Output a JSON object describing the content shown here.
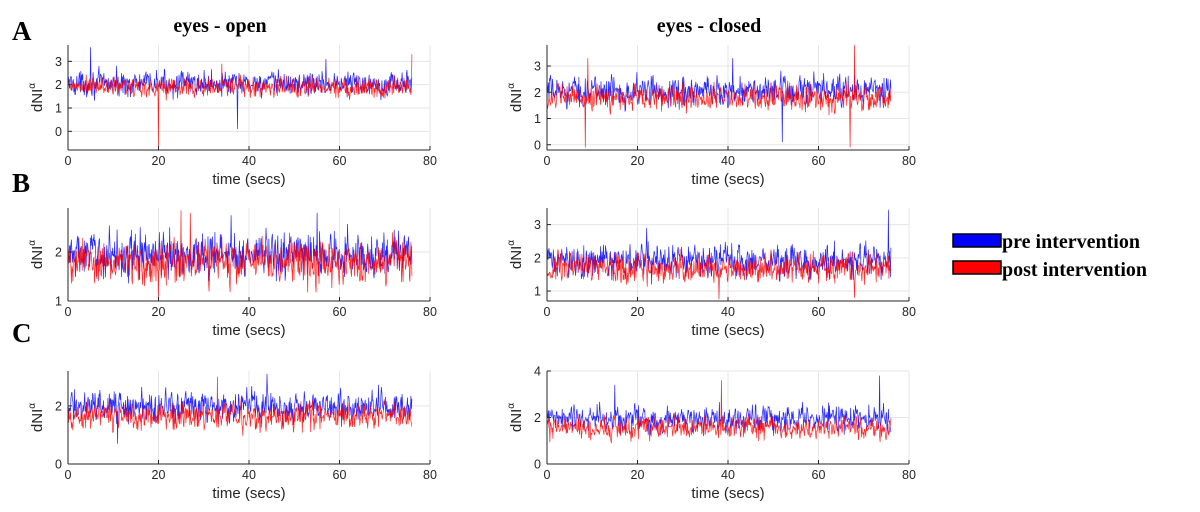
{
  "figure": {
    "col_titles": [
      "eyes - open",
      "eyes - closed"
    ],
    "row_letters": [
      "A",
      "B",
      "C"
    ],
    "legend": [
      {
        "label": "pre intervention",
        "color": "#0000ff"
      },
      {
        "label": "post intervention",
        "color": "#ff0000"
      }
    ]
  },
  "chart_data": [
    {
      "id": "A-open",
      "type": "line",
      "xlabel": "time (secs)",
      "ylabel": "dNI",
      "ylabel_sup": "α",
      "xlim": [
        0,
        80
      ],
      "ylim": [
        -0.8,
        3.7
      ],
      "xticks": [
        0,
        20,
        40,
        60,
        80
      ],
      "yticks": [
        0,
        1,
        2,
        3
      ],
      "grid": true,
      "series": [
        {
          "name": "pre intervention",
          "color": "#0000ff",
          "mean": 2.05,
          "spread": 0.32,
          "x_end": 76,
          "spikes": [
            [
              5,
              3.6
            ],
            [
              37.5,
              0.1
            ],
            [
              57,
              3.1
            ]
          ]
        },
        {
          "name": "post intervention",
          "color": "#ff0000",
          "mean": 1.9,
          "spread": 0.28,
          "x_end": 76,
          "spikes": [
            [
              20,
              -0.7
            ],
            [
              34,
              2.9
            ],
            [
              76,
              3.3
            ]
          ]
        }
      ]
    },
    {
      "id": "A-closed",
      "type": "line",
      "xlabel": "time (secs)",
      "ylabel": "dNI",
      "ylabel_sup": "α",
      "xlim": [
        0,
        80
      ],
      "ylim": [
        -0.2,
        3.8
      ],
      "xticks": [
        0,
        20,
        40,
        60,
        80
      ],
      "yticks": [
        0,
        1,
        2,
        3
      ],
      "grid": true,
      "series": [
        {
          "name": "pre intervention",
          "color": "#0000ff",
          "mean": 2.05,
          "spread": 0.34,
          "x_end": 76,
          "spikes": [
            [
              41,
              3.3
            ],
            [
              52,
              0.1
            ]
          ]
        },
        {
          "name": "post intervention",
          "color": "#ff0000",
          "mean": 1.8,
          "spread": 0.3,
          "x_end": 76,
          "spikes": [
            [
              8.5,
              -0.1
            ],
            [
              9,
              3.3
            ],
            [
              67,
              -0.1
            ],
            [
              68,
              3.8
            ]
          ]
        }
      ]
    },
    {
      "id": "B-open",
      "type": "line",
      "xlabel": "time (secs)",
      "ylabel": "dNI",
      "ylabel_sup": "α",
      "xlim": [
        0,
        80
      ],
      "ylim": [
        1,
        2.9
      ],
      "xticks": [
        0,
        20,
        40,
        60,
        80
      ],
      "yticks": [
        1,
        2
      ],
      "grid": true,
      "series": [
        {
          "name": "pre intervention",
          "color": "#0000ff",
          "mean": 1.95,
          "spread": 0.28,
          "x_end": 76,
          "spikes": [
            [
              36,
              2.75
            ],
            [
              55,
              2.8
            ]
          ]
        },
        {
          "name": "post intervention",
          "color": "#ff0000",
          "mean": 1.8,
          "spread": 0.27,
          "x_end": 76,
          "spikes": [
            [
              25,
              2.85
            ],
            [
              27,
              2.8
            ],
            [
              20,
              1.05
            ]
          ]
        }
      ]
    },
    {
      "id": "B-closed",
      "type": "line",
      "xlabel": "time (secs)",
      "ylabel": "dNI",
      "ylabel_sup": "α",
      "xlim": [
        0,
        80
      ],
      "ylim": [
        0.7,
        3.5
      ],
      "xticks": [
        0,
        20,
        40,
        60,
        80
      ],
      "yticks": [
        1,
        2,
        3
      ],
      "grid": true,
      "series": [
        {
          "name": "pre intervention",
          "color": "#0000ff",
          "mean": 1.9,
          "spread": 0.3,
          "x_end": 76,
          "spikes": [
            [
              75.5,
              3.45
            ],
            [
              22,
              2.9
            ]
          ]
        },
        {
          "name": "post intervention",
          "color": "#ff0000",
          "mean": 1.7,
          "spread": 0.27,
          "x_end": 76,
          "spikes": [
            [
              38,
              0.75
            ],
            [
              68,
              0.8
            ]
          ]
        }
      ]
    },
    {
      "id": "C-open",
      "type": "line",
      "xlabel": "time (secs)",
      "ylabel": "dNI",
      "ylabel_sup": "α",
      "xlim": [
        0,
        80
      ],
      "ylim": [
        0,
        3.2
      ],
      "xticks": [
        0,
        20,
        40,
        60,
        80
      ],
      "yticks": [
        0,
        2
      ],
      "grid": true,
      "series": [
        {
          "name": "pre intervention",
          "color": "#0000ff",
          "mean": 2.0,
          "spread": 0.32,
          "x_end": 76,
          "spikes": [
            [
              44,
              3.1
            ],
            [
              11,
              0.7
            ]
          ]
        },
        {
          "name": "post intervention",
          "color": "#ff0000",
          "mean": 1.65,
          "spread": 0.3,
          "x_end": 76,
          "spikes": [
            [
              33,
              3.0
            ]
          ]
        }
      ]
    },
    {
      "id": "C-closed",
      "type": "line",
      "xlabel": "time (secs)",
      "ylabel": "dNI",
      "ylabel_sup": "α",
      "xlim": [
        0,
        80
      ],
      "ylim": [
        0,
        4
      ],
      "xticks": [
        0,
        20,
        40,
        60,
        80
      ],
      "yticks": [
        0,
        2,
        4
      ],
      "grid": true,
      "series": [
        {
          "name": "pre intervention",
          "color": "#0000ff",
          "mean": 1.95,
          "spread": 0.34,
          "x_end": 76,
          "spikes": [
            [
              73.5,
              3.8
            ],
            [
              15,
              3.4
            ]
          ]
        },
        {
          "name": "post intervention",
          "color": "#ff0000",
          "mean": 1.55,
          "spread": 0.3,
          "x_end": 76,
          "spikes": [
            [
              38.5,
              3.6
            ]
          ]
        }
      ]
    }
  ]
}
